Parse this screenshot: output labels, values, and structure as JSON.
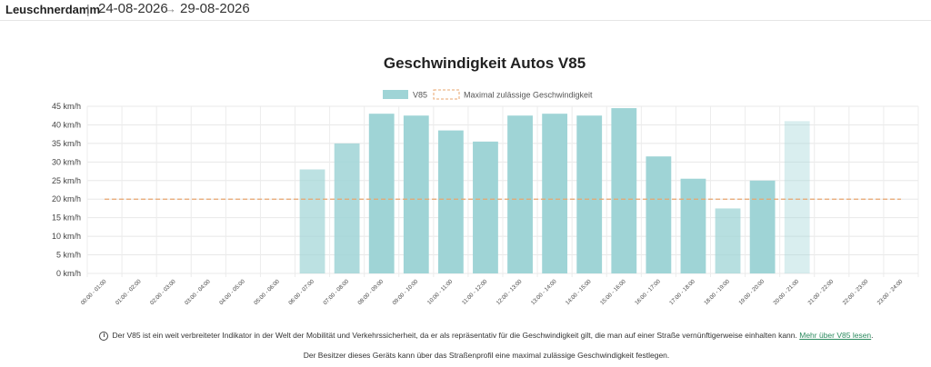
{
  "header": {
    "location": "Leuschnerdamm",
    "separator": "|",
    "date_from": "24-08-2026",
    "arrow": "→",
    "date_to": "29-08-2026"
  },
  "chart_data": {
    "type": "bar",
    "title": "Geschwindigkeit Autos V85",
    "legend": [
      {
        "name": "V85",
        "style": "bar",
        "color": "#9fd4d6"
      },
      {
        "name": "Maximal zulässige Geschwindigkeit",
        "style": "dashed-line",
        "color": "#e8a56e"
      }
    ],
    "legend_position": "top-center",
    "grid": true,
    "ylim": [
      0,
      45
    ],
    "yticks": [
      "0 km/h",
      "5 km/h",
      "10 km/h",
      "15 km/h",
      "20 km/h",
      "25 km/h",
      "30 km/h",
      "35 km/h",
      "40 km/h",
      "45 km/h"
    ],
    "categories": [
      "00:00 - 01:00",
      "01:00 - 02:00",
      "02:00 - 03:00",
      "03:00 - 04:00",
      "04:00 - 05:00",
      "05:00 - 06:00",
      "06:00 - 07:00",
      "07:00 - 08:00",
      "08:00 - 09:00",
      "09:00 - 10:00",
      "10:00 - 11:00",
      "11:00 - 12:00",
      "12:00 - 13:00",
      "13:00 - 14:00",
      "14:00 - 15:00",
      "15:00 - 16:00",
      "16:00 - 17:00",
      "17:00 - 18:00",
      "18:00 - 19:00",
      "19:00 - 20:00",
      "20:00 - 21:00",
      "21:00 - 22:00",
      "22:00 - 23:00",
      "23:00 - 24:00"
    ],
    "values": [
      0,
      0,
      0,
      0,
      0,
      0,
      28,
      35,
      43,
      42.5,
      38.5,
      35.5,
      42.5,
      43,
      42.5,
      44.5,
      31.5,
      25.5,
      17.5,
      25,
      41,
      0,
      0,
      0
    ],
    "opacity": [
      1,
      1,
      1,
      1,
      1,
      0.15,
      0.7,
      0.85,
      1,
      1,
      1,
      1,
      1,
      1,
      1,
      1,
      1,
      1,
      0.75,
      1,
      0.4,
      1,
      1,
      1
    ],
    "speed_limit": 20,
    "bar_color": "#9fd4d6",
    "limit_color": "#e8a56e"
  },
  "footer": {
    "info_icon": "i",
    "note_text": "Der V85 ist ein weit verbreiteter Indikator in der Welt der Mobilität und Verkehrssicherheit, da er als repräsentativ für die Geschwindigkeit gilt, die man auf einer Straße vernünftigerweise einhalten kann.",
    "link_text": "Mehr über V85 lesen",
    "link_suffix": ".",
    "note2": "Der Besitzer dieses Geräts kann über das Straßenprofil eine maximal zulässige Geschwindigkeit festlegen."
  }
}
